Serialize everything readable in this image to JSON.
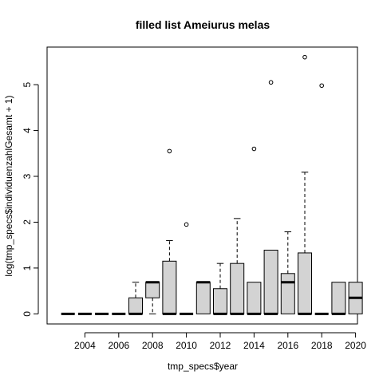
{
  "chart_data": {
    "type": "boxplot",
    "title": "filled list Ameiurus melas",
    "xlabel": "tmp_specs$year",
    "ylabel": "log(tmp_specs$individuenzahlGesamt + 1)",
    "ylim": [
      -0.22,
      5.82
    ],
    "yticks": [
      0,
      1,
      2,
      3,
      4,
      5
    ],
    "xtick_labels": [
      "2004",
      "2006",
      "2008",
      "2010",
      "2012",
      "2014",
      "2016",
      "2018",
      "2020"
    ],
    "grid": false,
    "box_color": "#d3d3d3",
    "boxes": [
      {
        "year": "2003",
        "lower_whisker": 0,
        "q1": 0,
        "median": 0,
        "q3": 0,
        "upper_whisker": 0,
        "outliers": []
      },
      {
        "year": "2004",
        "lower_whisker": 0,
        "q1": 0,
        "median": 0,
        "q3": 0,
        "upper_whisker": 0,
        "outliers": []
      },
      {
        "year": "2005",
        "lower_whisker": 0,
        "q1": 0,
        "median": 0,
        "q3": 0,
        "upper_whisker": 0,
        "outliers": []
      },
      {
        "year": "2006",
        "lower_whisker": 0,
        "q1": 0,
        "median": 0,
        "q3": 0,
        "upper_whisker": 0,
        "outliers": []
      },
      {
        "year": "2007",
        "lower_whisker": 0,
        "q1": 0,
        "median": 0,
        "q3": 0.35,
        "upper_whisker": 0.69,
        "outliers": []
      },
      {
        "year": "2008",
        "lower_whisker": 0,
        "q1": 0.35,
        "median": 0.69,
        "q3": 0.69,
        "upper_whisker": 0.69,
        "outliers": []
      },
      {
        "year": "2009",
        "lower_whisker": 0,
        "q1": 0,
        "median": 0,
        "q3": 1.15,
        "upper_whisker": 1.6,
        "outliers": [
          3.55
        ]
      },
      {
        "year": "2010",
        "lower_whisker": 0,
        "q1": 0,
        "median": 0,
        "q3": 0,
        "upper_whisker": 0,
        "outliers": [
          1.95
        ]
      },
      {
        "year": "2011",
        "lower_whisker": 0,
        "q1": 0,
        "median": 0.69,
        "q3": 0.69,
        "upper_whisker": 0.69,
        "outliers": []
      },
      {
        "year": "2012",
        "lower_whisker": 0,
        "q1": 0,
        "median": 0,
        "q3": 0.55,
        "upper_whisker": 1.1,
        "outliers": []
      },
      {
        "year": "2013",
        "lower_whisker": 0,
        "q1": 0,
        "median": 0,
        "q3": 1.1,
        "upper_whisker": 2.08,
        "outliers": []
      },
      {
        "year": "2014",
        "lower_whisker": 0,
        "q1": 0,
        "median": 0,
        "q3": 0.69,
        "upper_whisker": 0.69,
        "outliers": [
          3.6
        ]
      },
      {
        "year": "2015",
        "lower_whisker": 0,
        "q1": 0,
        "median": 0,
        "q3": 1.39,
        "upper_whisker": 1.39,
        "outliers": [
          5.05
        ]
      },
      {
        "year": "2016",
        "lower_whisker": 0,
        "q1": 0,
        "median": 0.69,
        "q3": 0.88,
        "upper_whisker": 1.79,
        "outliers": []
      },
      {
        "year": "2017",
        "lower_whisker": 0,
        "q1": 0,
        "median": 0,
        "q3": 1.33,
        "upper_whisker": 3.09,
        "outliers": [
          5.6
        ]
      },
      {
        "year": "2018",
        "lower_whisker": 0,
        "q1": 0,
        "median": 0,
        "q3": 0,
        "upper_whisker": 0,
        "outliers": [
          4.98
        ]
      },
      {
        "year": "2019",
        "lower_whisker": 0,
        "q1": 0,
        "median": 0,
        "q3": 0.69,
        "upper_whisker": 0.69,
        "outliers": []
      },
      {
        "year": "2020",
        "lower_whisker": 0,
        "q1": 0,
        "median": 0.35,
        "q3": 0.69,
        "upper_whisker": 0.69,
        "outliers": []
      }
    ]
  }
}
